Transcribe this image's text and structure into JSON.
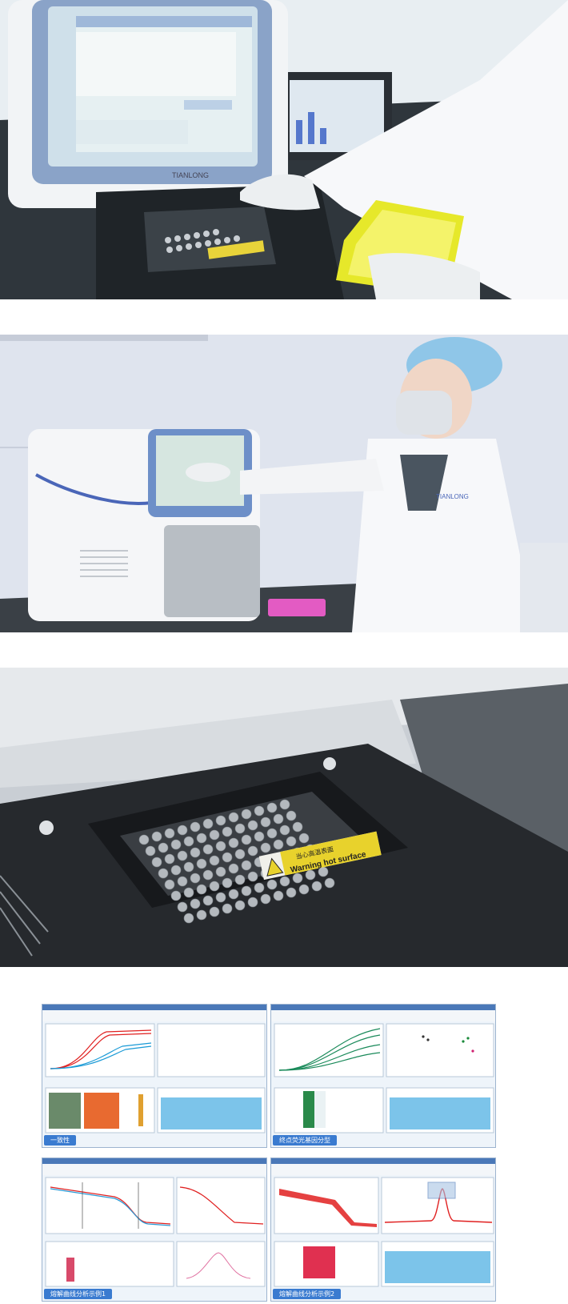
{
  "photos": [
    {
      "name": "pcr-instrument-loading-plate",
      "brand": "TIANLONG"
    },
    {
      "name": "technician-touchscreen-operation",
      "brand": "TIANLONG"
    },
    {
      "name": "thermal-block-closeup",
      "warning": "Warning hot surface",
      "warning_cn": "当心高温表面"
    }
  ],
  "panels": [
    {
      "caption": "一致性"
    },
    {
      "caption": "终点荧光基因分型"
    },
    {
      "caption": "熔解曲线分析示例1"
    },
    {
      "caption": "熔解曲线分析示例2"
    }
  ],
  "colors": {
    "caption_bg": "#3a7bd0",
    "bench": "#2d3338",
    "coat": "#f4f6f8"
  }
}
